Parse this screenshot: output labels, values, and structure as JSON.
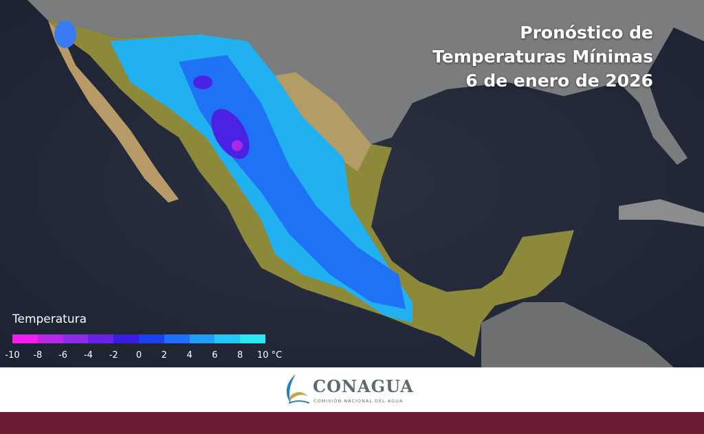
{
  "header": {
    "title_lines": [
      "Pronóstico de",
      "Temperaturas Mínimas",
      "6 de enero de 2026"
    ]
  },
  "legend": {
    "title": "Temperatura",
    "labels": [
      "-10",
      "-8",
      "-6",
      "-4",
      "-2",
      "0",
      "2",
      "4",
      "6",
      "8",
      "10 °C"
    ],
    "colors": [
      "#f01ef0",
      "#b826e6",
      "#8c2ce4",
      "#6a22e6",
      "#3a1ce0",
      "#1c40f0",
      "#1f70f5",
      "#219cf7",
      "#25c6f5",
      "#2ee6ee"
    ]
  },
  "footer": {
    "brand": "CONAGUA",
    "brand_subtitle": "COMISIÓN NACIONAL DEL AGUA"
  }
}
